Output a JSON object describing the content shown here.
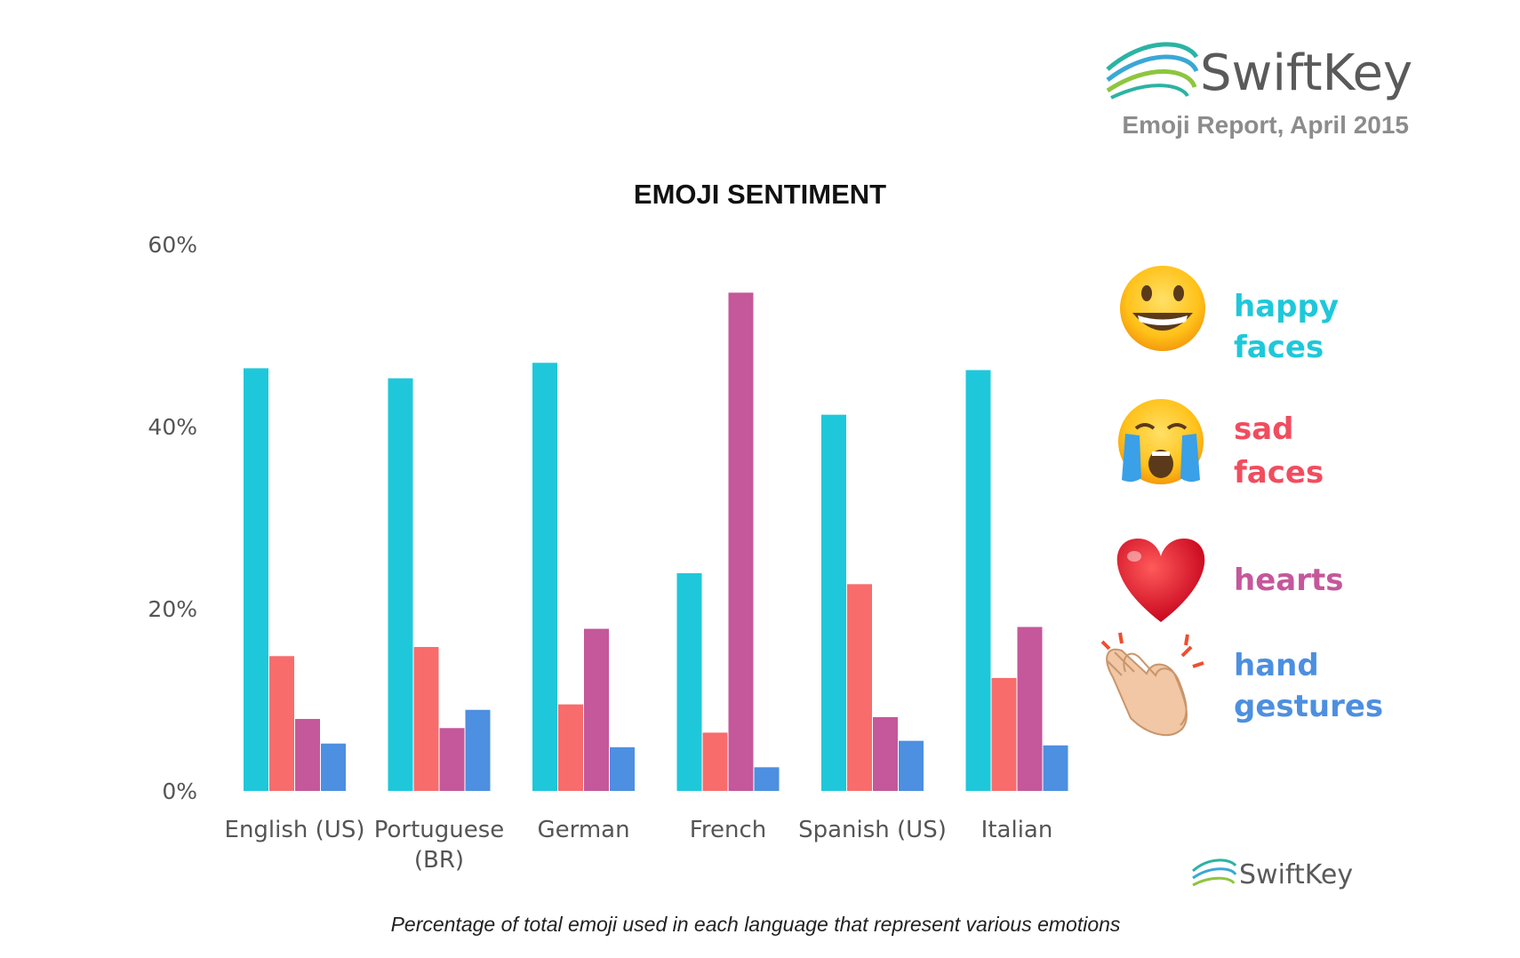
{
  "header": {
    "brand": "SwiftKey",
    "subtitle": "Emoji Report, April 2015"
  },
  "footer_brand": "SwiftKey",
  "caption": "Percentage of total emoji used in each language that represent various emotions",
  "colors": {
    "happy": "#1ec8da",
    "sad": "#f86c6c",
    "hearts": "#c5579b",
    "hands": "#4d8fe0",
    "axis_text": "#555555",
    "brand_text": "#5a5a5a",
    "subtitle_text": "#8c8c8c"
  },
  "legend": [
    {
      "line1": "happy",
      "line2": "faces",
      "icon": "grinning-face-icon",
      "color": "#1ec8da"
    },
    {
      "line1": "sad",
      "line2": "faces",
      "icon": "crying-face-icon",
      "color": "#f04d5f"
    },
    {
      "line1": "hearts",
      "line2": "",
      "icon": "heart-icon",
      "color": "#c5579b"
    },
    {
      "line1": "hand",
      "line2": "gestures",
      "icon": "clapping-hands-icon",
      "color": "#4d8fe0"
    }
  ],
  "chart_data": {
    "type": "bar",
    "title": "EMOJI SENTIMENT",
    "categories": [
      [
        "English (US)"
      ],
      [
        "Portuguese",
        "(BR)"
      ],
      [
        "German"
      ],
      [
        "French"
      ],
      [
        "Spanish (US)"
      ],
      [
        "Italian"
      ]
    ],
    "series": [
      {
        "name": "happy faces",
        "color": "#1ec8da",
        "values": [
          46.4,
          45.3,
          47.0,
          23.9,
          41.3,
          46.2
        ]
      },
      {
        "name": "sad faces",
        "color": "#f86c6c",
        "values": [
          14.8,
          15.8,
          9.5,
          6.4,
          22.7,
          12.4
        ]
      },
      {
        "name": "hearts",
        "color": "#c5579b",
        "values": [
          7.9,
          6.9,
          17.8,
          54.7,
          8.1,
          18.0
        ]
      },
      {
        "name": "hand gestures",
        "color": "#4d8fe0",
        "values": [
          5.2,
          8.9,
          4.8,
          2.6,
          5.5,
          5.0
        ]
      }
    ],
    "yticks": [
      "0%",
      "20%",
      "40%",
      "60%"
    ],
    "ytick_values": [
      0,
      20,
      40,
      60
    ],
    "ylim": [
      0,
      60
    ],
    "grid": false,
    "legend_position": "right"
  }
}
